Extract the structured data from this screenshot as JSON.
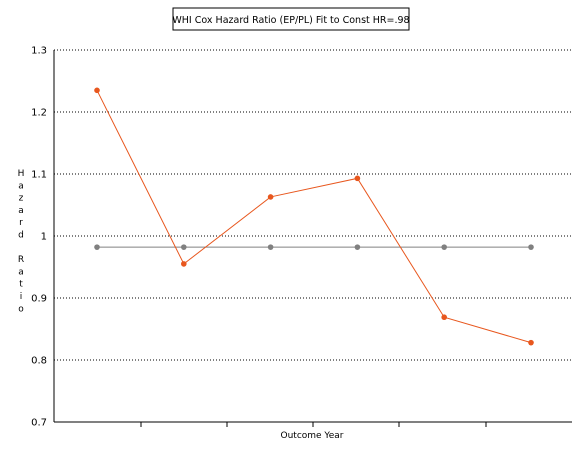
{
  "chart_data": {
    "type": "line",
    "title": "WHI Cox Hazard Ratio (EP/PL) Fit to Const HR=.98",
    "xlabel": "Outcome Year",
    "ylabel": "Hazard Ratio",
    "ylim": [
      0.7,
      1.3
    ],
    "yticks": [
      "1.3",
      "1.2",
      "1.1",
      "1",
      "0.9",
      "0.8",
      "0.7"
    ],
    "x": [
      1,
      2,
      3,
      4,
      5,
      6
    ],
    "grid": true,
    "legend": "none",
    "series": [
      {
        "values": [
          1.235,
          0.955,
          1.063,
          1.093,
          0.869,
          0.828
        ],
        "color": "#E8571E"
      },
      {
        "values": [
          0.982,
          0.982,
          0.982,
          0.982,
          0.982,
          0.982
        ],
        "color": "#808080"
      }
    ]
  }
}
